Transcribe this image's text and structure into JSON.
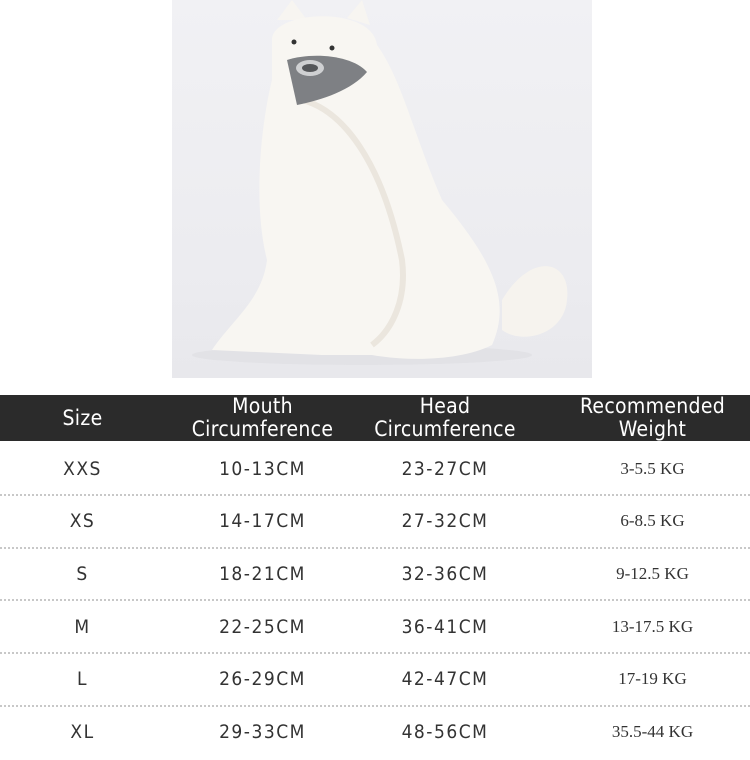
{
  "image": {
    "subject": "dog-wearing-muzzle-photo"
  },
  "table": {
    "headers": [
      {
        "line1": "Size",
        "line2": ""
      },
      {
        "line1": "Mouth",
        "line2": "Circumference"
      },
      {
        "line1": "Head",
        "line2": "Circumference"
      },
      {
        "line1": "Recommended",
        "line2": "Weight"
      }
    ],
    "rows": [
      [
        "XXS",
        "10-13CM",
        "23-27CM",
        "3-5.5 KG"
      ],
      [
        "XS",
        "14-17CM",
        "27-32CM",
        "6-8.5 KG"
      ],
      [
        "S",
        "18-21CM",
        "32-36CM",
        "9-12.5 KG"
      ],
      [
        "M",
        "22-25CM",
        "36-41CM",
        "13-17.5 KG"
      ],
      [
        "L",
        "26-29CM",
        "42-47CM",
        "17-19 KG"
      ],
      [
        "XL",
        "29-33CM",
        "48-56CM",
        "35.5-44 KG"
      ]
    ]
  },
  "colors": {
    "header_bg": "#2b2b2b",
    "header_text": "#ffffff",
    "body_text": "#333333"
  }
}
